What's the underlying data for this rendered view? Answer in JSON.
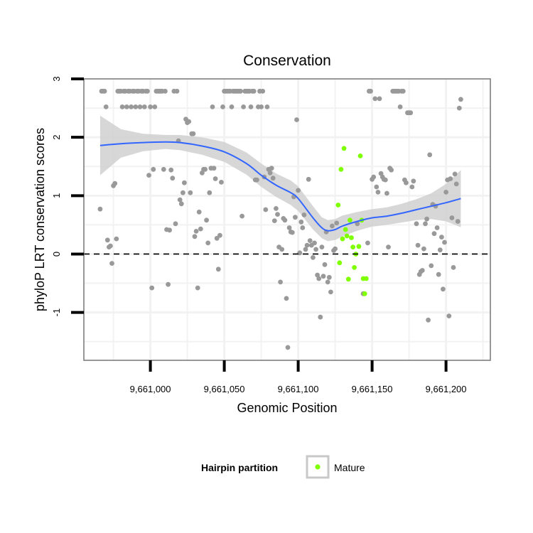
{
  "chart_data": {
    "type": "scatter",
    "title": "Conservation",
    "xlabel": "Genomic Position",
    "ylabel": "phyloP LRT conservation scores",
    "xlim": [
      9660955,
      9661230
    ],
    "ylim": [
      -1.82,
      3.0
    ],
    "x_ticks": [
      9661000,
      9661050,
      9661100,
      9661150,
      9661200
    ],
    "x_tick_labels": [
      "9,661,000",
      "9,661,050",
      "9,661,100",
      "9,661,150",
      "9,661,200"
    ],
    "y_ticks": [
      -1,
      0,
      1,
      2,
      3
    ],
    "y_tick_labels": [
      "-1",
      "0",
      "1",
      "2",
      "3"
    ],
    "reference_line": {
      "y": 0,
      "style": "dashed"
    },
    "grid": true,
    "legend": {
      "title": "Hairpin partition",
      "entries": [
        {
          "label": "Mature",
          "color": "#7fff00"
        }
      ],
      "position": "bottom"
    },
    "colors": {
      "other": "#999999",
      "mature": "#7fff00",
      "smooth": "#3366ff",
      "band": "#d0d0d0",
      "grid": "#f2f2f2",
      "frame": "#7f7f7f"
    },
    "series": [
      {
        "points": [
          [
            9660966,
            0.77
          ],
          [
            9660967,
            2.79
          ],
          [
            9660968,
            2.79
          ],
          [
            9660969,
            2.79
          ],
          [
            9660970,
            2.52
          ],
          [
            9660971,
            0.24
          ],
          [
            9660972,
            0.12
          ],
          [
            9660973,
            0.14
          ],
          [
            9660974,
            -0.16
          ],
          [
            9660975,
            1.17
          ],
          [
            9660976,
            1.21
          ],
          [
            9660977,
            0.26
          ],
          [
            9660978,
            2.79
          ],
          [
            9660979,
            2.79
          ],
          [
            9660980,
            2.79
          ],
          [
            9660981,
            2.52
          ],
          [
            9660982,
            2.79
          ],
          [
            9660983,
            2.79
          ],
          [
            9660984,
            2.52
          ],
          [
            9660985,
            2.79
          ],
          [
            9660986,
            2.79
          ],
          [
            9660987,
            2.52
          ],
          [
            9660988,
            2.79
          ],
          [
            9660989,
            2.79
          ],
          [
            9660990,
            2.52
          ],
          [
            9660991,
            2.79
          ],
          [
            9660992,
            2.79
          ],
          [
            9660993,
            2.52
          ],
          [
            9660994,
            2.79
          ],
          [
            9660995,
            2.79
          ],
          [
            9660996,
            2.52
          ],
          [
            9660997,
            2.79
          ],
          [
            9660998,
            2.79
          ],
          [
            9660999,
            1.35
          ],
          [
            9661000,
            2.52
          ],
          [
            9661001,
            -0.58
          ],
          [
            9661002,
            1.45
          ],
          [
            9661003,
            2.52
          ],
          [
            9661004,
            2.79
          ],
          [
            9661005,
            2.79
          ],
          [
            9661006,
            2.79
          ],
          [
            9661007,
            2.79
          ],
          [
            9661008,
            2.79
          ],
          [
            9661009,
            1.45
          ],
          [
            9661010,
            2.79
          ],
          [
            9661011,
            0.42
          ],
          [
            9661012,
            -0.52
          ],
          [
            9661013,
            0.41
          ],
          [
            9661014,
            1.44
          ],
          [
            9661015,
            1.3
          ],
          [
            9661016,
            2.79
          ],
          [
            9661017,
            0.52
          ],
          [
            9661018,
            2.79
          ],
          [
            9661019,
            1.94
          ],
          [
            9661020,
            0.93
          ],
          [
            9661021,
            0.86
          ],
          [
            9661022,
            1.05
          ],
          [
            9661023,
            1.22
          ],
          [
            9661024,
            2.31
          ],
          [
            9661025,
            2.25
          ],
          [
            9661026,
            2.27
          ],
          [
            9661027,
            1.05
          ],
          [
            9661028,
            2.06
          ],
          [
            9661029,
            2.06
          ],
          [
            9661030,
            0.3
          ],
          [
            9661031,
            0.39
          ],
          [
            9661032,
            -0.58
          ],
          [
            9661033,
            0.72
          ],
          [
            9661034,
            0.43
          ],
          [
            9661035,
            1.39
          ],
          [
            9661036,
            1.45
          ],
          [
            9661037,
            1.45
          ],
          [
            9661038,
            0.58
          ],
          [
            9661039,
            0.19
          ],
          [
            9661040,
            1.05
          ],
          [
            9661041,
            1.47
          ],
          [
            9661042,
            2.52
          ],
          [
            9661043,
            1.47
          ],
          [
            9661044,
            1.29
          ],
          [
            9661045,
            0.27
          ],
          [
            9661046,
            -0.26
          ],
          [
            9661047,
            0.32
          ],
          [
            9661048,
            1.23
          ],
          [
            9661049,
            2.52
          ],
          [
            9661050,
            2.79
          ],
          [
            9661051,
            2.79
          ],
          [
            9661052,
            2.79
          ],
          [
            9661053,
            2.79
          ],
          [
            9661054,
            2.79
          ],
          [
            9661055,
            2.52
          ],
          [
            9661056,
            2.79
          ],
          [
            9661057,
            2.79
          ],
          [
            9661058,
            2.79
          ],
          [
            9661059,
            2.79
          ],
          [
            9661060,
            2.79
          ],
          [
            9661061,
            2.79
          ],
          [
            9661062,
            0.65
          ],
          [
            9661063,
            2.52
          ],
          [
            9661064,
            2.79
          ],
          [
            9661065,
            2.79
          ],
          [
            9661066,
            2.79
          ],
          [
            9661067,
            2.79
          ],
          [
            9661068,
            2.52
          ],
          [
            9661069,
            2.79
          ],
          [
            9661070,
            2.79
          ],
          [
            9661071,
            1.27
          ],
          [
            9661072,
            1.27
          ],
          [
            9661073,
            2.52
          ],
          [
            9661074,
            2.79
          ],
          [
            9661075,
            2.52
          ],
          [
            9661076,
            2.79
          ],
          [
            9661077,
            1.32
          ],
          [
            9661078,
            0.76
          ],
          [
            9661079,
            2.52
          ],
          [
            9661080,
            1.45
          ],
          [
            9661081,
            1.39
          ],
          [
            9661082,
            1.47
          ],
          [
            9661083,
            1.3
          ],
          [
            9661084,
            0.57
          ],
          [
            9661085,
            0.78
          ],
          [
            9661086,
            0.68
          ],
          [
            9661087,
            0.12
          ],
          [
            9661088,
            -0.48
          ],
          [
            9661089,
            0.08
          ],
          [
            9661090,
            0.61
          ],
          [
            9661091,
            0.58
          ],
          [
            9661092,
            -0.76
          ],
          [
            9661093,
            -1.6
          ],
          [
            9661094,
            0.45
          ],
          [
            9661095,
            0.38
          ],
          [
            9661096,
            0.37
          ],
          [
            9661097,
            0.98
          ],
          [
            9661098,
            0.63
          ],
          [
            9661099,
            2.3
          ],
          [
            9661100,
            1.09
          ],
          [
            9661101,
            0.02
          ],
          [
            9661102,
            0.55
          ],
          [
            9661103,
            0.45
          ],
          [
            9661104,
            0.67
          ],
          [
            9661105,
            0.08
          ],
          [
            9661106,
            0.15
          ],
          [
            9661107,
            1.28
          ],
          [
            9661108,
            0.23
          ],
          [
            9661109,
            0.15
          ],
          [
            9661110,
            -0.06
          ],
          [
            9661111,
            0.19
          ],
          [
            9661112,
            0.08
          ],
          [
            9661113,
            -0.36
          ],
          [
            9661114,
            -0.42
          ],
          [
            9661115,
            -1.08
          ],
          [
            9661116,
            0.12
          ],
          [
            9661117,
            -0.38
          ],
          [
            9661118,
            -0.18
          ],
          [
            9661119,
            0.38
          ],
          [
            9661120,
            -0.48
          ],
          [
            9661121,
            -0.4
          ],
          [
            9661122,
            -0.65
          ],
          [
            9661123,
            0.48
          ],
          [
            9661124,
            0.06
          ],
          [
            9661125,
            0.09
          ],
          [
            9661126,
            0.53
          ],
          [
            9661140,
            0.52
          ],
          [
            9661144,
            -0.68
          ],
          [
            9661147,
            0.19
          ],
          [
            9661148,
            2.79
          ],
          [
            9661149,
            2.79
          ],
          [
            9661150,
            1.28
          ],
          [
            9661151,
            1.32
          ],
          [
            9661152,
            2.66
          ],
          [
            9661153,
            1.15
          ],
          [
            9661154,
            1.06
          ],
          [
            9661155,
            2.66
          ],
          [
            9661156,
            1.38
          ],
          [
            9661157,
            1.32
          ],
          [
            9661158,
            1.28
          ],
          [
            9661159,
            1.27
          ],
          [
            9661160,
            1.04
          ],
          [
            9661161,
            0.12
          ],
          [
            9661162,
            1.47
          ],
          [
            9661163,
            1.44
          ],
          [
            9661164,
            2.79
          ],
          [
            9661165,
            2.79
          ],
          [
            9661166,
            2.79
          ],
          [
            9661167,
            2.79
          ],
          [
            9661168,
            2.79
          ],
          [
            9661169,
            2.52
          ],
          [
            9661170,
            2.79
          ],
          [
            9661171,
            2.79
          ],
          [
            9661172,
            1.27
          ],
          [
            9661173,
            1.22
          ],
          [
            9661174,
            2.42
          ],
          [
            9661175,
            2.42
          ],
          [
            9661176,
            2.42
          ],
          [
            9661177,
            1.15
          ],
          [
            9661178,
            1.25
          ],
          [
            9661180,
            0.52
          ],
          [
            9661181,
            0.15
          ],
          [
            9661182,
            -0.35
          ],
          [
            9661183,
            -0.3
          ],
          [
            9661184,
            -0.28
          ],
          [
            9661185,
            0.09
          ],
          [
            9661186,
            0.52
          ],
          [
            9661187,
            0.6
          ],
          [
            9661188,
            -1.13
          ],
          [
            9661189,
            1.7
          ],
          [
            9661190,
            -0.2
          ],
          [
            9661191,
            0.85
          ],
          [
            9661192,
            0.35
          ],
          [
            9661193,
            0.82
          ],
          [
            9661194,
            0.45
          ],
          [
            9661195,
            -0.35
          ],
          [
            9661196,
            0.07
          ],
          [
            9661197,
            0.29
          ],
          [
            9661198,
            -0.6
          ],
          [
            9661199,
            0.2
          ],
          [
            9661200,
            1.06
          ],
          [
            9661201,
            1.27
          ],
          [
            9661202,
            -1.06
          ],
          [
            9661203,
            1.29
          ],
          [
            9661204,
            0.62
          ],
          [
            9661205,
            -0.23
          ],
          [
            9661206,
            1.37
          ],
          [
            9661207,
            1.2
          ],
          [
            9661208,
            0.56
          ],
          [
            9661209,
            2.5
          ],
          [
            9661210,
            2.65
          ]
        ],
        "color": "#999999"
      },
      {
        "name": "Mature",
        "points": [
          [
            9661127,
            0.84
          ],
          [
            9661128,
            -0.15
          ],
          [
            9661129,
            1.45
          ],
          [
            9661130,
            0.26
          ],
          [
            9661131,
            1.81
          ],
          [
            9661132,
            0.42
          ],
          [
            9661133,
            0.31
          ],
          [
            9661134,
            -0.43
          ],
          [
            9661135,
            0.58
          ],
          [
            9661136,
            0.28
          ],
          [
            9661137,
            0.12
          ],
          [
            9661138,
            -0.23
          ],
          [
            9661139,
            0.0
          ],
          [
            9661141,
            0.13
          ],
          [
            9661142,
            1.68
          ],
          [
            9661143,
            0.58
          ],
          [
            9661144,
            -0.42
          ],
          [
            9661145,
            -0.68
          ],
          [
            9661146,
            -0.42
          ]
        ],
        "color": "#7fff00"
      }
    ],
    "smooth": {
      "x": [
        9660966,
        9660980,
        9660995,
        9661010,
        9661020,
        9661035,
        9661050,
        9661065,
        9661075,
        9661085,
        9661095,
        9661100,
        9661110,
        9661116,
        9661120,
        9661125,
        9661130,
        9661140,
        9661150,
        9661160,
        9661170,
        9661180,
        9661190,
        9661200,
        9661210
      ],
      "y": [
        1.86,
        1.89,
        1.91,
        1.92,
        1.91,
        1.85,
        1.75,
        1.55,
        1.35,
        1.18,
        1.05,
        0.95,
        0.62,
        0.45,
        0.4,
        0.42,
        0.48,
        0.56,
        0.62,
        0.65,
        0.7,
        0.76,
        0.82,
        0.88,
        0.95
      ],
      "lower": [
        1.35,
        1.65,
        1.76,
        1.8,
        1.78,
        1.7,
        1.58,
        1.36,
        1.15,
        0.98,
        0.84,
        0.74,
        0.42,
        0.27,
        0.22,
        0.24,
        0.3,
        0.4,
        0.47,
        0.5,
        0.54,
        0.58,
        0.6,
        0.56,
        0.46
      ],
      "upper": [
        2.37,
        2.14,
        2.06,
        2.04,
        2.04,
        2.0,
        1.92,
        1.74,
        1.55,
        1.38,
        1.26,
        1.16,
        0.82,
        0.63,
        0.58,
        0.6,
        0.66,
        0.72,
        0.77,
        0.8,
        0.86,
        0.94,
        1.04,
        1.2,
        1.44
      ]
    }
  }
}
